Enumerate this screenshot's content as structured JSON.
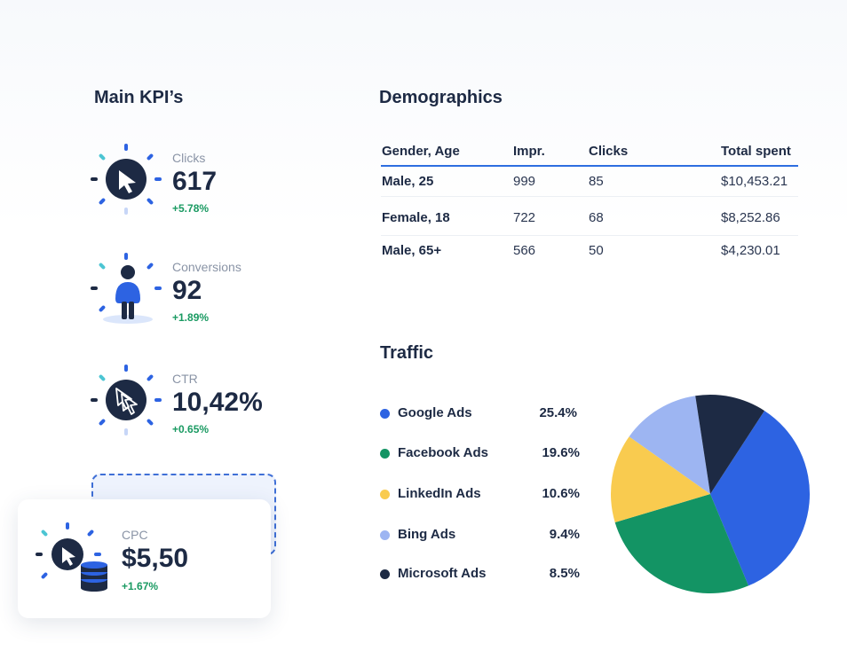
{
  "kpi": {
    "title": "Main KPI’s",
    "items": [
      {
        "label": "Clicks",
        "value": "617",
        "delta": "+5.78%",
        "icon": "cursor-icon"
      },
      {
        "label": "Conversions",
        "value": "92",
        "delta": "+1.89%",
        "icon": "person-icon"
      },
      {
        "label": "CTR",
        "value": "10,42%",
        "delta": "+0.65%",
        "icon": "multi-cursor-icon"
      }
    ],
    "cpc": {
      "label": "CPC",
      "value": "$5,50",
      "delta": "+1.67%",
      "icon": "cursor-coins-icon"
    }
  },
  "demographics": {
    "title": "Demographics",
    "columns": [
      "Gender, Age",
      "Impr.",
      "Clicks",
      "Total spent"
    ],
    "rows": [
      [
        "Male, 25",
        "999",
        "85",
        "$10,453.21"
      ],
      [
        "Female, 18",
        "722",
        "68",
        "$8,252.86"
      ],
      [
        "Male, 65+",
        "566",
        "50",
        "$4,230.01"
      ]
    ]
  },
  "traffic": {
    "title": "Traffic",
    "sources": [
      {
        "name": "Google Ads",
        "pct": "25.4%",
        "color": "#2d63e2"
      },
      {
        "name": "Facebook Ads",
        "pct": "19.6%",
        "color": "#139464"
      },
      {
        "name": "LinkedIn Ads",
        "pct": "10.6%",
        "color": "#f9cb4f"
      },
      {
        "name": "Bing Ads",
        "pct": "9.4%",
        "color": "#9db5f2"
      },
      {
        "name": "Microsoft Ads",
        "pct": "8.5%",
        "color": "#1d2a44"
      }
    ]
  },
  "colors": {
    "accent_blue": "#2d6ee0",
    "positive_green": "#1a9a62",
    "navy": "#1d2a44"
  }
}
